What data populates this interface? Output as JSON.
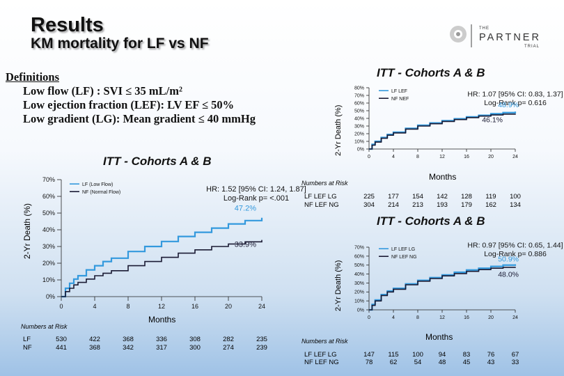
{
  "header": {
    "title": "Results",
    "subtitle": "KM mortality for LF vs NF",
    "logo_small": "THE",
    "logo_big": "PARTNER",
    "logo_trial": "TRIAL"
  },
  "definitions": {
    "heading": "Definitions",
    "lines": [
      "Low flow (LF) : SVI ≤ 35 mL/m²",
      "Low ejection fraction (LEF): LV EF ≤ 50%",
      "Low gradient (LG): Mean gradient ≤ 40 mmHg"
    ]
  },
  "colors": {
    "series_a": "#3399dd",
    "series_b": "#1a1a33"
  },
  "chart_data": [
    {
      "id": "lf_vs_nf",
      "type": "line",
      "title": "ITT - Cohorts A & B",
      "xlabel": "Months",
      "ylabel": "2-Yr Death (%)",
      "xlim": [
        0,
        24
      ],
      "ylim": [
        0,
        70
      ],
      "xticks": [
        0,
        4,
        8,
        12,
        16,
        20,
        24
      ],
      "yticks": [
        0,
        10,
        20,
        30,
        40,
        50,
        60,
        70
      ],
      "ytick_labels": [
        "0%",
        "10%",
        "20%",
        "30%",
        "40%",
        "50%",
        "60%",
        "70%"
      ],
      "legend_position": "top-left",
      "annotation": {
        "hr": "HR: 1.52 [95% CI: 1.24, 1.87]",
        "logrank": "Log-Rank p= <.001"
      },
      "end_labels": [
        "47.2%",
        "33.9%"
      ],
      "series": [
        {
          "name": "LF (Low Flow)",
          "color": "#3399dd",
          "x": [
            0,
            0.5,
            1,
            1.5,
            2,
            3,
            4,
            5,
            6,
            8,
            10,
            12,
            14,
            16,
            18,
            20,
            22,
            24
          ],
          "y": [
            0,
            5,
            8,
            10.5,
            12.5,
            16,
            18.5,
            21,
            23,
            27,
            30,
            33,
            36,
            38.5,
            41,
            43.5,
            45.5,
            47.2
          ]
        },
        {
          "name": "NF (Normal Flow)",
          "color": "#1a1a33",
          "x": [
            0,
            0.5,
            1,
            1.5,
            2,
            3,
            4,
            5,
            6,
            8,
            10,
            12,
            14,
            16,
            18,
            20,
            22,
            24
          ],
          "y": [
            0,
            3,
            5,
            7,
            8.5,
            10.5,
            12.5,
            14,
            15.5,
            18.5,
            21,
            23.5,
            26,
            28,
            30,
            31.5,
            32.8,
            33.9
          ]
        }
      ],
      "numbers_at_risk": {
        "label": "Numbers at Risk",
        "rows": [
          {
            "name": "LF",
            "values": [
              "530",
              "422",
              "368",
              "336",
              "308",
              "282",
              "235"
            ]
          },
          {
            "name": "NF",
            "values": [
              "441",
              "368",
              "342",
              "317",
              "300",
              "274",
              "239"
            ]
          }
        ]
      }
    },
    {
      "id": "lef_vs_nef",
      "type": "line",
      "title": "ITT - Cohorts A & B",
      "xlabel": "Months",
      "ylabel": "2-Yr Death (%)",
      "xlim": [
        0,
        24
      ],
      "ylim": [
        0,
        80
      ],
      "xticks": [
        0,
        4,
        8,
        12,
        16,
        20,
        24
      ],
      "yticks": [
        0,
        10,
        20,
        30,
        40,
        50,
        60,
        70,
        80
      ],
      "ytick_labels": [
        "0%",
        "10%",
        "20%",
        "30%",
        "40%",
        "50%",
        "60%",
        "70%",
        "80%"
      ],
      "legend_position": "top-left",
      "annotation": {
        "hr": "HR: 1.07 [95% CI: 0.83, 1.37]",
        "logrank": "Log-Rank p= 0.616"
      },
      "end_labels": [
        "48.9%",
        "46.1%"
      ],
      "series": [
        {
          "name": "LF LEF",
          "color": "#3399dd",
          "x": [
            0,
            0.5,
            1,
            2,
            3,
            4,
            6,
            8,
            10,
            12,
            14,
            16,
            18,
            20,
            22,
            24
          ],
          "y": [
            0,
            6,
            10,
            15,
            19,
            22,
            27,
            31,
            34,
            37,
            39.5,
            42,
            44,
            46,
            47.5,
            48.9
          ]
        },
        {
          "name": "NF NEF",
          "color": "#1a1a33",
          "x": [
            0,
            0.5,
            1,
            2,
            3,
            4,
            6,
            8,
            10,
            12,
            14,
            16,
            18,
            20,
            22,
            24
          ],
          "y": [
            0,
            5,
            9,
            14,
            18,
            21,
            26,
            30,
            33,
            36,
            38.5,
            41,
            43,
            44.5,
            45.5,
            46.1
          ]
        }
      ],
      "numbers_at_risk": {
        "label": "Numbers at Risk",
        "rows": [
          {
            "name": "LF LEF LG",
            "values": [
              "225",
              "177",
              "154",
              "142",
              "128",
              "119",
              "100"
            ]
          },
          {
            "name": "NF LEF NG",
            "values": [
              "304",
              "214",
              "213",
              "193",
              "179",
              "162",
              "134"
            ]
          }
        ]
      }
    },
    {
      "id": "lef_lg_vs_ng",
      "type": "line",
      "title": "ITT - Cohorts A & B",
      "xlabel": "Months",
      "ylabel": "2-Yr Death (%)",
      "xlim": [
        0,
        24
      ],
      "ylim": [
        0,
        70
      ],
      "xticks": [
        0,
        4,
        8,
        12,
        16,
        20,
        24
      ],
      "yticks": [
        0,
        10,
        20,
        30,
        40,
        50,
        60,
        70
      ],
      "ytick_labels": [
        "0%",
        "10%",
        "20%",
        "30%",
        "40%",
        "50%",
        "60%",
        "70%"
      ],
      "legend_position": "top-left",
      "annotation": {
        "hr": "HR: 0.97 [95% CI: 0.65, 1.44]",
        "logrank": "Log-Rank p= 0.886"
      },
      "end_labels": [
        "50.9%",
        "48.0%"
      ],
      "series": [
        {
          "name": "LF LEF LG",
          "color": "#3399dd",
          "x": [
            0,
            0.5,
            1,
            2,
            3,
            4,
            6,
            8,
            10,
            12,
            14,
            16,
            18,
            20,
            22,
            24
          ],
          "y": [
            0,
            6,
            11,
            17,
            21,
            24,
            29,
            33,
            36,
            39,
            42,
            44.5,
            46.5,
            48.5,
            50,
            50.9
          ]
        },
        {
          "name": "NF LEF NG",
          "color": "#1a1a33",
          "x": [
            0,
            0.5,
            1,
            2,
            3,
            4,
            6,
            8,
            10,
            12,
            14,
            16,
            18,
            20,
            22,
            24
          ],
          "y": [
            0,
            5,
            10,
            16,
            20,
            23,
            28,
            32,
            35,
            38,
            40.5,
            43,
            45,
            46.5,
            47.5,
            48.0
          ]
        }
      ],
      "numbers_at_risk": {
        "label": "Numbers at Risk",
        "rows": [
          {
            "name": "LF LEF LG",
            "values": [
              "147",
              "115",
              "100",
              "94",
              "83",
              "76",
              "67"
            ]
          },
          {
            "name": "NF LEF NG",
            "values": [
              "78",
              "62",
              "54",
              "48",
              "45",
              "43",
              "33"
            ]
          }
        ]
      }
    }
  ]
}
